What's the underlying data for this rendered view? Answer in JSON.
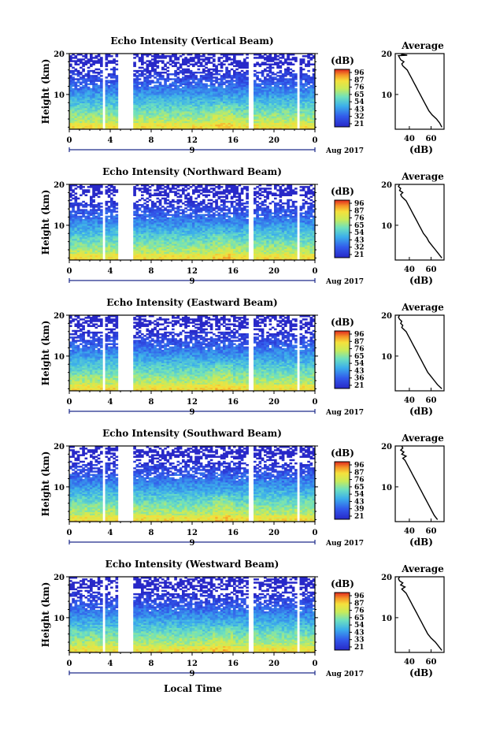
{
  "figure": {
    "xlabel": "Local Time",
    "date_label": "Aug 2017",
    "day_label": "9",
    "colorbar_unit": "(dB)",
    "colorbar_ticks": [
      [
        "96",
        "87",
        "76",
        "65",
        "54",
        "43",
        "32",
        "21"
      ],
      [
        "96",
        "87",
        "76",
        "65",
        "54",
        "43",
        "32",
        "21"
      ],
      [
        "96",
        "87",
        "76",
        "65",
        "54",
        "43",
        "36",
        "21"
      ],
      [
        "96",
        "87",
        "76",
        "65",
        "54",
        "43",
        "39",
        "21"
      ],
      [
        "96",
        "87",
        "76",
        "65",
        "54",
        "43",
        "33",
        "21"
      ]
    ],
    "colors": {
      "low": "#2a2fd6",
      "mid_low": "#39b3e6",
      "mid": "#70e0b0",
      "mid_high": "#e8e84a",
      "high": "#e83020"
    }
  },
  "chart_data": [
    {
      "type": "heatmap",
      "title": "Echo Intensity (Vertical Beam)",
      "xlabel": "",
      "ylabel": "Height (km)",
      "xticks": [
        "0",
        "4",
        "8",
        "12",
        "16",
        "20",
        "0"
      ],
      "yticks": [
        "20",
        "10"
      ],
      "xlim": [
        0,
        24
      ],
      "ylim": [
        1.5,
        20
      ],
      "gaps_hours": [
        [
          3.3,
          3.6
        ],
        [
          4.7,
          6.2
        ],
        [
          17.6,
          17.9
        ],
        [
          22.3,
          22.6
        ]
      ],
      "clim": [
        21,
        96
      ]
    },
    {
      "type": "heatmap",
      "title": "Echo Intensity (Northward Beam)",
      "xlabel": "",
      "ylabel": "Height (km)",
      "xticks": [
        "0",
        "4",
        "8",
        "12",
        "16",
        "20",
        "0"
      ],
      "yticks": [
        "20",
        "10"
      ],
      "xlim": [
        0,
        24
      ],
      "ylim": [
        1.5,
        20
      ],
      "gaps_hours": [
        [
          3.3,
          3.6
        ],
        [
          4.7,
          6.2
        ],
        [
          17.6,
          17.9
        ],
        [
          22.3,
          22.6
        ]
      ],
      "clim": [
        21,
        96
      ]
    },
    {
      "type": "heatmap",
      "title": "Echo Intensity (Eastward Beam)",
      "xlabel": "",
      "ylabel": "Height (km)",
      "xticks": [
        "0",
        "4",
        "8",
        "12",
        "16",
        "20",
        "0"
      ],
      "yticks": [
        "20",
        "10"
      ],
      "xlim": [
        0,
        24
      ],
      "ylim": [
        1.5,
        20
      ],
      "gaps_hours": [
        [
          3.3,
          3.6
        ],
        [
          4.7,
          6.2
        ],
        [
          17.6,
          17.9
        ],
        [
          22.3,
          22.6
        ]
      ],
      "clim": [
        21,
        96
      ]
    },
    {
      "type": "heatmap",
      "title": "Echo Intensity (Southward Beam)",
      "xlabel": "",
      "ylabel": "Height (km)",
      "xticks": [
        "0",
        "4",
        "8",
        "12",
        "16",
        "20",
        "0"
      ],
      "yticks": [
        "20",
        "10"
      ],
      "xlim": [
        0,
        24
      ],
      "ylim": [
        1.5,
        20
      ],
      "gaps_hours": [
        [
          3.3,
          3.6
        ],
        [
          4.7,
          6.2
        ],
        [
          17.6,
          17.9
        ],
        [
          22.3,
          22.6
        ]
      ],
      "clim": [
        21,
        96
      ]
    },
    {
      "type": "heatmap",
      "title": "Echo Intensity (Westward Beam)",
      "xlabel": "",
      "ylabel": "Height (km)",
      "xticks": [
        "0",
        "4",
        "8",
        "12",
        "16",
        "20",
        "0"
      ],
      "yticks": [
        "20",
        "10"
      ],
      "xlim": [
        0,
        24
      ],
      "ylim": [
        1.5,
        20
      ],
      "gaps_hours": [
        [
          3.3,
          3.6
        ],
        [
          4.7,
          6.2
        ],
        [
          17.6,
          17.9
        ],
        [
          22.3,
          22.6
        ]
      ],
      "clim": [
        21,
        96
      ]
    },
    {
      "type": "line",
      "title": "Average",
      "xlabel": "(dB)",
      "ylabel": "",
      "xticks": [
        "40",
        "60"
      ],
      "yticks": [
        "20",
        "10"
      ],
      "xlim": [
        27,
        72
      ],
      "ylim": [
        1.5,
        20
      ],
      "x": [
        70,
        68,
        65,
        61,
        58,
        56,
        54,
        52,
        50,
        48,
        46,
        44,
        42,
        40,
        38,
        36,
        34,
        33,
        35,
        32,
        31,
        30,
        38,
        33,
        34
      ],
      "y": [
        2,
        3,
        4,
        5,
        6,
        7,
        8,
        9,
        10,
        11,
        12,
        13,
        14,
        15,
        16,
        16.5,
        17,
        17.5,
        18,
        18.5,
        19,
        19.5,
        19.6,
        19.8,
        20
      ]
    },
    {
      "type": "line",
      "title": "Average",
      "xlabel": "(dB)",
      "ylabel": "",
      "xticks": [
        "40",
        "60"
      ],
      "yticks": [
        "20",
        "10"
      ],
      "xlim": [
        27,
        72
      ],
      "ylim": [
        1.5,
        20
      ],
      "x": [
        70,
        67,
        64,
        61,
        58,
        56,
        53,
        51,
        49,
        47,
        45,
        43,
        41,
        39,
        37,
        35,
        33,
        32,
        34,
        31,
        32,
        30,
        31
      ],
      "y": [
        2,
        3,
        4,
        5,
        6,
        7,
        8,
        9,
        10,
        11,
        12,
        13,
        14,
        15,
        16,
        16.5,
        17,
        17.5,
        18,
        18.5,
        19,
        19.5,
        20
      ]
    },
    {
      "type": "line",
      "title": "Average",
      "xlabel": "(dB)",
      "ylabel": "",
      "xticks": [
        "40",
        "60"
      ],
      "yticks": [
        "20",
        "10"
      ],
      "xlim": [
        27,
        72
      ],
      "ylim": [
        1.5,
        20
      ],
      "x": [
        70,
        66,
        63,
        60,
        57,
        55,
        53,
        51,
        49,
        47,
        45,
        43,
        41,
        39,
        37,
        35,
        33,
        34,
        32,
        33,
        31,
        30,
        31
      ],
      "y": [
        2,
        3,
        4,
        5,
        6,
        7,
        8,
        9,
        10,
        11,
        12,
        13,
        14,
        15,
        16,
        16.5,
        17,
        17.5,
        18,
        18.5,
        19,
        19.5,
        20
      ]
    },
    {
      "type": "line",
      "title": "Average",
      "xlabel": "(dB)",
      "ylabel": "",
      "xticks": [
        "40",
        "60"
      ],
      "yticks": [
        "20",
        "10"
      ],
      "xlim": [
        27,
        72
      ],
      "ylim": [
        1.5,
        20
      ],
      "x": [
        66,
        63,
        61,
        59,
        57,
        55,
        53,
        51,
        49,
        47,
        45,
        43,
        41,
        39,
        37,
        36,
        34,
        37,
        33,
        35,
        32,
        34,
        33
      ],
      "y": [
        2,
        3,
        4,
        5,
        6,
        7,
        8,
        9,
        10,
        11,
        12,
        13,
        14,
        15,
        16,
        16.5,
        17,
        17.5,
        18,
        18.5,
        19,
        19.5,
        20
      ]
    },
    {
      "type": "line",
      "title": "Average",
      "xlabel": "(dB)",
      "ylabel": "",
      "xticks": [
        "40",
        "60"
      ],
      "yticks": [
        "20",
        "10"
      ],
      "xlim": [
        27,
        72
      ],
      "ylim": [
        1.5,
        20
      ],
      "x": [
        70,
        67,
        64,
        60,
        57,
        55,
        53,
        51,
        49,
        47,
        45,
        43,
        41,
        39,
        37,
        35,
        33,
        36,
        32,
        34,
        31,
        30,
        31
      ],
      "y": [
        2,
        3,
        4,
        5,
        6,
        7,
        8,
        9,
        10,
        11,
        12,
        13,
        14,
        15,
        16,
        16.5,
        17,
        17.5,
        18,
        18.5,
        19,
        19.5,
        20
      ]
    }
  ]
}
